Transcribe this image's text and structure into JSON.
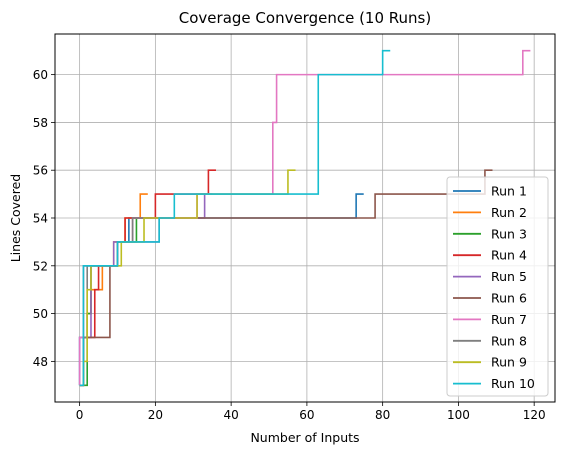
{
  "chart_data": {
    "type": "line",
    "title": "Coverage Convergence (10 Runs)",
    "xlabel": "Number of Inputs",
    "ylabel": "Lines Covered",
    "xlim": [
      -6.5,
      125.5
    ],
    "ylim": [
      46.3,
      61.7
    ],
    "xticks": [
      0,
      20,
      40,
      60,
      80,
      100,
      120
    ],
    "yticks": [
      48,
      50,
      52,
      54,
      56,
      58,
      60
    ],
    "grid": true,
    "legend_position": "lower right",
    "series": [
      {
        "name": "Run 1",
        "color": "#1f77b4",
        "points": [
          [
            0,
            47
          ],
          [
            0,
            49
          ],
          [
            1,
            49
          ],
          [
            1,
            52
          ],
          [
            10,
            52
          ],
          [
            10,
            53
          ],
          [
            13,
            53
          ],
          [
            13,
            54
          ],
          [
            73,
            54
          ],
          [
            73,
            55
          ],
          [
            75,
            55
          ]
        ]
      },
      {
        "name": "Run 2",
        "color": "#ff7f0e",
        "points": [
          [
            0,
            47
          ],
          [
            1,
            47
          ],
          [
            1,
            49
          ],
          [
            2,
            49
          ],
          [
            2,
            50
          ],
          [
            3,
            50
          ],
          [
            3,
            51
          ],
          [
            6,
            51
          ],
          [
            6,
            52
          ],
          [
            9,
            52
          ],
          [
            9,
            53
          ],
          [
            12,
            53
          ],
          [
            12,
            54
          ],
          [
            16,
            54
          ],
          [
            16,
            55
          ],
          [
            18,
            55
          ]
        ]
      },
      {
        "name": "Run 3",
        "color": "#2ca02c",
        "points": [
          [
            0,
            47
          ],
          [
            2,
            47
          ],
          [
            2,
            50
          ],
          [
            3,
            50
          ],
          [
            3,
            52
          ],
          [
            10,
            52
          ],
          [
            10,
            53
          ],
          [
            15,
            53
          ],
          [
            15,
            54
          ],
          [
            22,
            54
          ]
        ]
      },
      {
        "name": "Run 4",
        "color": "#d62728",
        "points": [
          [
            0,
            47
          ],
          [
            1,
            47
          ],
          [
            1,
            49
          ],
          [
            4,
            49
          ],
          [
            4,
            51
          ],
          [
            5,
            51
          ],
          [
            5,
            52
          ],
          [
            10,
            52
          ],
          [
            10,
            53
          ],
          [
            12,
            53
          ],
          [
            12,
            54
          ],
          [
            20,
            54
          ],
          [
            20,
            55
          ],
          [
            34,
            55
          ],
          [
            34,
            56
          ],
          [
            36,
            56
          ]
        ]
      },
      {
        "name": "Run 5",
        "color": "#9467bd",
        "points": [
          [
            0,
            47
          ],
          [
            1,
            47
          ],
          [
            1,
            49
          ],
          [
            3,
            49
          ],
          [
            3,
            52
          ],
          [
            9,
            52
          ],
          [
            9,
            53
          ],
          [
            21,
            53
          ],
          [
            21,
            54
          ],
          [
            33,
            54
          ],
          [
            33,
            55
          ],
          [
            35,
            55
          ]
        ]
      },
      {
        "name": "Run 6",
        "color": "#8c564b",
        "points": [
          [
            0,
            47
          ],
          [
            1,
            47
          ],
          [
            1,
            49
          ],
          [
            8,
            49
          ],
          [
            8,
            52
          ],
          [
            10,
            52
          ],
          [
            10,
            53
          ],
          [
            14,
            53
          ],
          [
            14,
            54
          ],
          [
            78,
            54
          ],
          [
            78,
            55
          ],
          [
            107,
            55
          ],
          [
            107,
            56
          ],
          [
            109,
            56
          ]
        ]
      },
      {
        "name": "Run 7",
        "color": "#e377c2",
        "points": [
          [
            0,
            47
          ],
          [
            0,
            49
          ],
          [
            1,
            49
          ],
          [
            1,
            52
          ],
          [
            10,
            52
          ],
          [
            10,
            53
          ],
          [
            14,
            53
          ],
          [
            14,
            54
          ],
          [
            31,
            54
          ],
          [
            31,
            55
          ],
          [
            51,
            55
          ],
          [
            51,
            58
          ],
          [
            52,
            58
          ],
          [
            52,
            60
          ],
          [
            117,
            60
          ],
          [
            117,
            61
          ],
          [
            119,
            61
          ]
        ]
      },
      {
        "name": "Run 8",
        "color": "#7f7f7f",
        "points": [
          [
            0,
            47
          ],
          [
            1,
            47
          ],
          [
            1,
            49
          ],
          [
            2,
            49
          ],
          [
            2,
            52
          ],
          [
            10,
            52
          ],
          [
            10,
            53
          ],
          [
            14,
            53
          ],
          [
            14,
            54
          ],
          [
            19,
            54
          ]
        ]
      },
      {
        "name": "Run 9",
        "color": "#bcbd22",
        "points": [
          [
            0,
            47
          ],
          [
            1,
            47
          ],
          [
            1,
            48
          ],
          [
            2,
            48
          ],
          [
            2,
            51
          ],
          [
            3,
            51
          ],
          [
            3,
            52
          ],
          [
            11,
            52
          ],
          [
            11,
            53
          ],
          [
            17,
            53
          ],
          [
            17,
            54
          ],
          [
            31,
            54
          ],
          [
            31,
            55
          ],
          [
            55,
            55
          ],
          [
            55,
            56
          ],
          [
            57,
            56
          ]
        ]
      },
      {
        "name": "Run 10",
        "color": "#17becf",
        "points": [
          [
            0,
            47
          ],
          [
            1,
            47
          ],
          [
            1,
            52
          ],
          [
            10,
            52
          ],
          [
            10,
            53
          ],
          [
            21,
            53
          ],
          [
            21,
            54
          ],
          [
            25,
            54
          ],
          [
            25,
            55
          ],
          [
            63,
            55
          ],
          [
            63,
            60
          ],
          [
            80,
            60
          ],
          [
            80,
            61
          ],
          [
            82,
            61
          ]
        ]
      }
    ]
  }
}
